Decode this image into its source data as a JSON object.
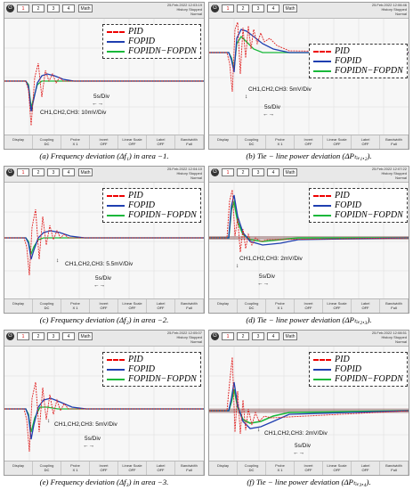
{
  "legend": {
    "pid": "PID",
    "fopid": "FOPID",
    "fopidn": "FOPIDN−FOPDN"
  },
  "colors": {
    "pid": "#e02020",
    "fopid": "#1f3fb0",
    "fopidn": "#18b83a"
  },
  "scope_common": {
    "channels": [
      "1",
      "2",
      "3",
      "4"
    ],
    "mode_btn": "Math",
    "run_btn": "Stopped",
    "history_btn": "History",
    "normal_btn": "Normal",
    "bottom": {
      "cells": [
        {
          "label": "Display",
          "value": ""
        },
        {
          "label": "Coupling",
          "value": "DC"
        },
        {
          "label": "Probe",
          "value": "X 1"
        },
        {
          "label": "Invert",
          "value": "OFF"
        },
        {
          "label": "Linear Scale",
          "value": "OFF"
        },
        {
          "label": "Label",
          "value": "OFF"
        },
        {
          "label": "Bandwidth",
          "value": "Full"
        }
      ]
    }
  },
  "panels": [
    {
      "id": "a",
      "date": "25.Feb.2022 12:03:19",
      "ann_ch": "CH1,CH2,CH3: 10mV/Div",
      "ann_time": "5s/Div",
      "caption": "(a) Frequency deviation (Δf₁) in area −1."
    },
    {
      "id": "b",
      "date": "25.Feb.2022 12:06:46",
      "ann_ch": "CH1,CH2,CH3: 5mV/Div",
      "ann_time": "5s/Div",
      "caption": "(b) Tie − line power deviation (ΔPₜᵢₑ₁,₂)."
    },
    {
      "id": "c",
      "date": "25.Feb.2022 12:04:10",
      "ann_ch": "CH1,CH2,CH3: 5.5mV/Div",
      "ann_time": "5s/Div",
      "caption": "(c) Frequency deviation (Δf₂) in area −2."
    },
    {
      "id": "d",
      "date": "25.Feb.2022 12:07:22",
      "ann_ch": "CH1,CH2,CH3: 2mV/Div",
      "ann_time": "5s/Div",
      "caption": "(d) Tie − line power deviation (ΔPₜᵢₑ₂,₃)."
    },
    {
      "id": "e",
      "date": "25.Feb.2022 12:05:07",
      "ann_ch": "CH1,CH2,CH3: 5mV/Div",
      "ann_time": "5s/Div",
      "caption": "(e) Frequency deviation (Δf₃) in area −3."
    },
    {
      "id": "f",
      "date": "25.Feb.2022 12:08:51",
      "ann_ch": "CH1,CH2,CH3: 2mV/Div",
      "ann_time": "5s/Div",
      "caption": "(f) Tie − line power deviation (ΔPₜᵢₑ₃,₄)."
    }
  ]
}
